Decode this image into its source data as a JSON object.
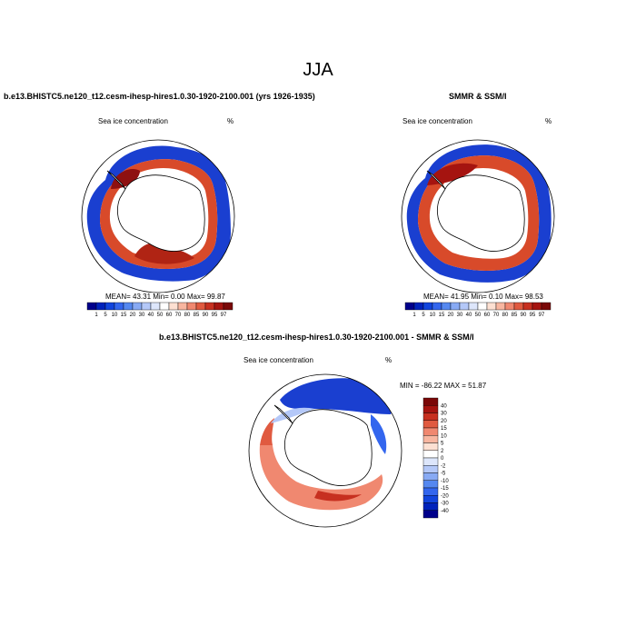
{
  "title": "JJA",
  "panels": [
    {
      "title": "b.e13.BHISTC5.ne120_t12.cesm-ihesp-hires1.0.30-1920-2100.001 (yrs 1926-1935)",
      "left_label": "Sea ice concentration",
      "right_label": "%",
      "stats": "MEAN=  43.31  Min=   0.00  Max=  99.87",
      "colorbar_ticks": [
        "1",
        "5",
        "10",
        "15",
        "20",
        "30",
        "40",
        "50",
        "60",
        "70",
        "80",
        "85",
        "90",
        "95",
        "97"
      ]
    },
    {
      "title": "SMMR & SSM/I",
      "left_label": "Sea ice concentration",
      "right_label": "%",
      "stats": "MEAN=  41.95  Min=   0.10  Max=  98.53",
      "colorbar_ticks": [
        "1",
        "5",
        "10",
        "15",
        "20",
        "30",
        "40",
        "50",
        "60",
        "70",
        "80",
        "85",
        "90",
        "95",
        "97"
      ]
    },
    {
      "title": "b.e13.BHISTC5.ne120_t12.cesm-ihesp-hires1.0.30-1920-2100.001 - SMMR & SSM/I",
      "left_label": "Sea ice concentration",
      "right_label": "%",
      "stats": "MIN = -86.22 MAX =  51.87",
      "colorbar_ticks": [
        "40",
        "30",
        "20",
        "15",
        "10",
        "5",
        "2",
        "0",
        "-2",
        "-5",
        "-10",
        "-15",
        "-20",
        "-30",
        "-40"
      ]
    }
  ],
  "colors": {
    "seq": [
      "#00008b",
      "#0022bb",
      "#1144dd",
      "#3366ee",
      "#5588f0",
      "#88aaf4",
      "#b4c8f8",
      "#dde6fb",
      "#ffffff",
      "#fde0d2",
      "#f8b6a0",
      "#f08870",
      "#e05a40",
      "#c73020",
      "#a51410",
      "#7a0808"
    ],
    "div": [
      "#7a0808",
      "#a51410",
      "#c73020",
      "#e05a40",
      "#f08870",
      "#f8b6a0",
      "#fde0d2",
      "#ffffff",
      "#dde6fb",
      "#b4c8f8",
      "#88aaf4",
      "#5588f0",
      "#3366ee",
      "#1144dd",
      "#0022bb",
      "#00008b"
    ]
  }
}
